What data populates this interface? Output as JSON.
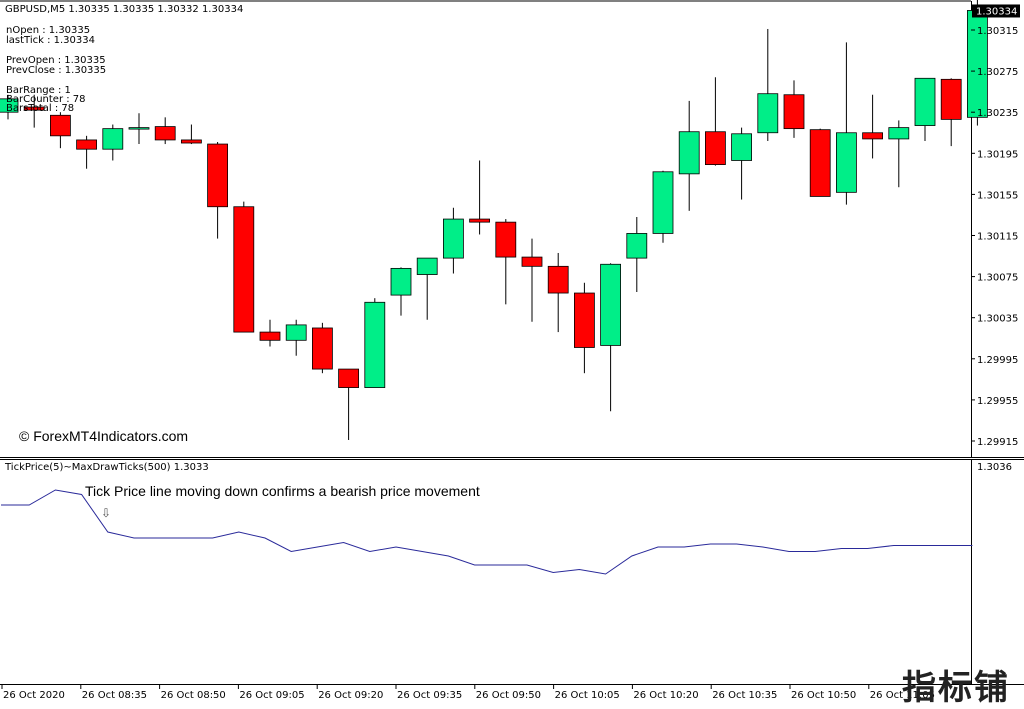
{
  "header": {
    "symbol_line": "GBPUSD,M5  1.30335 1.30335 1.30332 1.30334"
  },
  "info_lines": [
    "nOpen : 1.30335",
    "lastTick : 1.30334",
    "PrevOpen : 1.30335",
    "PrevClose : 1.30335",
    "BarRange : 1",
    "BarCounter : 78",
    "BarsTotal : 78"
  ],
  "watermark": "© ForexMT4Indicators.com",
  "annotation": "Tick Price line moving down confirms a bearish price movement",
  "logo_text": "指标铺",
  "indicator_header": "TickPrice(5)~MaxDrawTicks(500) 1.3033",
  "colors": {
    "bull": "#00EE88",
    "bear": "#FF0000",
    "line": "#2A2A9A",
    "price_tag_bg": "#000000"
  },
  "chart_data": [
    {
      "type": "candlestick",
      "symbol": "GBPUSD",
      "timeframe": "M5",
      "current_price": "1.30334",
      "y_ticks": [
        "1.30315",
        "1.30275",
        "1.30235",
        "1.30195",
        "1.30155",
        "1.30115",
        "1.30075",
        "1.30035",
        "1.29995",
        "1.29955",
        "1.29915"
      ],
      "ylim": [
        1.29905,
        1.30345
      ],
      "candles": [
        {
          "o": 1.30235,
          "h": 1.30252,
          "l": 1.30228,
          "c": 1.30248
        },
        {
          "o": 1.3024,
          "h": 1.30252,
          "l": 1.3022,
          "c": 1.30237
        },
        {
          "o": 1.30232,
          "h": 1.30235,
          "l": 1.302,
          "c": 1.30212
        },
        {
          "o": 1.30208,
          "h": 1.30212,
          "l": 1.3018,
          "c": 1.30199
        },
        {
          "o": 1.30199,
          "h": 1.30223,
          "l": 1.30188,
          "c": 1.30219
        },
        {
          "o": 1.3022,
          "h": 1.30234,
          "l": 1.30204,
          "c": 1.3022
        },
        {
          "o": 1.30221,
          "h": 1.3023,
          "l": 1.30204,
          "c": 1.30208
        },
        {
          "o": 1.30208,
          "h": 1.30223,
          "l": 1.30204,
          "c": 1.30205
        },
        {
          "o": 1.30204,
          "h": 1.30206,
          "l": 1.30112,
          "c": 1.30143
        },
        {
          "o": 1.30143,
          "h": 1.30148,
          "l": 1.30021,
          "c": 1.30021
        },
        {
          "o": 1.30021,
          "h": 1.30033,
          "l": 1.30007,
          "c": 1.30013
        },
        {
          "o": 1.30013,
          "h": 1.30033,
          "l": 1.29998,
          "c": 1.30028
        },
        {
          "o": 1.30025,
          "h": 1.3003,
          "l": 1.29981,
          "c": 1.29985
        },
        {
          "o": 1.29985,
          "h": 1.29985,
          "l": 1.29916,
          "c": 1.29967
        },
        {
          "o": 1.29967,
          "h": 1.30054,
          "l": 1.29967,
          "c": 1.3005
        },
        {
          "o": 1.30057,
          "h": 1.30084,
          "l": 1.30037,
          "c": 1.30083
        },
        {
          "o": 1.30077,
          "h": 1.30092,
          "l": 1.30033,
          "c": 1.30093
        },
        {
          "o": 1.30093,
          "h": 1.30142,
          "l": 1.30078,
          "c": 1.30131
        },
        {
          "o": 1.30131,
          "h": 1.30188,
          "l": 1.30116,
          "c": 1.30128
        },
        {
          "o": 1.30128,
          "h": 1.30131,
          "l": 1.30048,
          "c": 1.30094
        },
        {
          "o": 1.30094,
          "h": 1.30112,
          "l": 1.30031,
          "c": 1.30085
        },
        {
          "o": 1.30085,
          "h": 1.30098,
          "l": 1.30021,
          "c": 1.30059
        },
        {
          "o": 1.30059,
          "h": 1.30069,
          "l": 1.29981,
          "c": 1.30006
        },
        {
          "o": 1.30008,
          "h": 1.30088,
          "l": 1.29944,
          "c": 1.30087
        },
        {
          "o": 1.30093,
          "h": 1.30133,
          "l": 1.3006,
          "c": 1.30117
        },
        {
          "o": 1.30117,
          "h": 1.30178,
          "l": 1.30108,
          "c": 1.30177
        },
        {
          "o": 1.30175,
          "h": 1.30246,
          "l": 1.30139,
          "c": 1.30216
        },
        {
          "o": 1.30216,
          "h": 1.30269,
          "l": 1.30183,
          "c": 1.30184
        },
        {
          "o": 1.30188,
          "h": 1.3022,
          "l": 1.3015,
          "c": 1.30214
        },
        {
          "o": 1.30215,
          "h": 1.30316,
          "l": 1.30207,
          "c": 1.30253
        },
        {
          "o": 1.30252,
          "h": 1.30266,
          "l": 1.3021,
          "c": 1.30219
        },
        {
          "o": 1.30218,
          "h": 1.30219,
          "l": 1.30153,
          "c": 1.30153
        },
        {
          "o": 1.30157,
          "h": 1.30303,
          "l": 1.30145,
          "c": 1.30215
        },
        {
          "o": 1.30215,
          "h": 1.30252,
          "l": 1.3019,
          "c": 1.30209
        },
        {
          "o": 1.30209,
          "h": 1.30227,
          "l": 1.30162,
          "c": 1.3022
        },
        {
          "o": 1.30222,
          "h": 1.30268,
          "l": 1.30207,
          "c": 1.30268
        },
        {
          "o": 1.30267,
          "h": 1.30268,
          "l": 1.30202,
          "c": 1.30228
        },
        {
          "o": 1.3023,
          "h": 1.30345,
          "l": 1.30222,
          "c": 1.30334
        }
      ]
    },
    {
      "type": "line",
      "title": "TickPrice(5)~MaxDrawTicks(500) 1.3033",
      "y_ticks": [
        "1.3036"
      ],
      "series": [
        {
          "values": [
            0.0,
            0.0,
            1.0,
            0.7,
            -1.8,
            -2.2,
            -2.2,
            -2.2,
            -2.2,
            -1.8,
            -2.2,
            -3.1,
            -2.8,
            -2.5,
            -3.1,
            -2.8,
            -3.1,
            -3.4,
            -4.0,
            -4.0,
            -4.0,
            -4.5,
            -4.3,
            -4.6,
            -3.4,
            -2.8,
            -2.8,
            -2.6,
            -2.6,
            -2.8,
            -3.1,
            -3.1,
            -2.9,
            -2.9,
            -2.7,
            -2.7,
            -2.7,
            -2.7
          ]
        }
      ]
    }
  ],
  "x_axis": {
    "labels": [
      "26 Oct 2020",
      "26 Oct 08:35",
      "26 Oct 08:50",
      "26 Oct 09:05",
      "26 Oct 09:20",
      "26 Oct 09:35",
      "26 Oct 09:50",
      "26 Oct 10:05",
      "26 Oct 10:20",
      "26 Oct 10:35",
      "26 Oct 10:50",
      "26 Oct 11:05"
    ]
  }
}
